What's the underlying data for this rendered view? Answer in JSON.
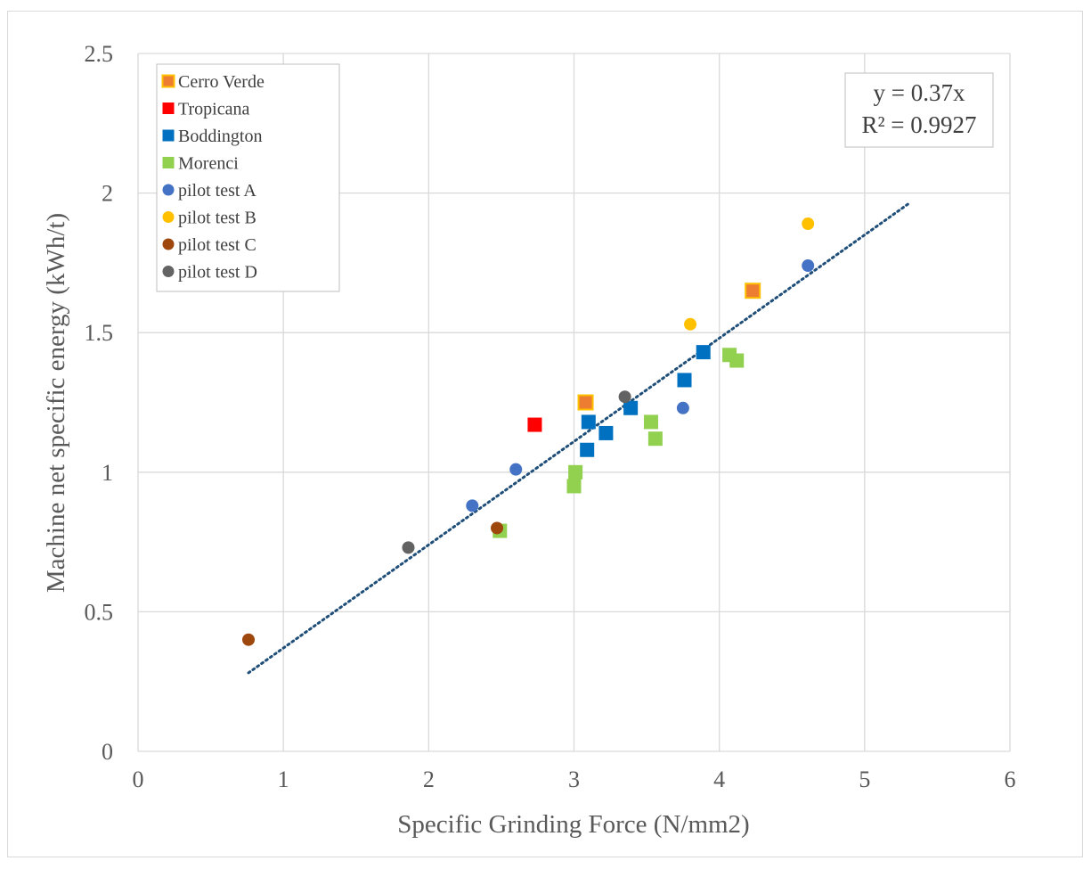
{
  "chart_data": {
    "type": "scatter",
    "xlabel": "Specific Grinding Force (N/mm2)",
    "ylabel": "Machine net specific energy (kWh/t)",
    "xlim": [
      0,
      6
    ],
    "ylim": [
      0,
      2.5
    ],
    "x_ticks": [
      "0",
      "1",
      "2",
      "3",
      "4",
      "5",
      "6"
    ],
    "y_ticks": [
      "0",
      "0.5",
      "1",
      "1.5",
      "2",
      "2.5"
    ],
    "grid": true,
    "legend_position": "top-left",
    "series": [
      {
        "name": "Cerro Verde",
        "marker": "square",
        "color": "#ED7D31",
        "border": "#FFC000",
        "points": [
          [
            3.08,
            1.25
          ],
          [
            4.23,
            1.65
          ]
        ]
      },
      {
        "name": "Tropicana",
        "marker": "square",
        "color": "#FF0000",
        "points": [
          [
            2.73,
            1.17
          ]
        ]
      },
      {
        "name": "Boddington",
        "marker": "square",
        "color": "#0070C0",
        "points": [
          [
            3.09,
            1.08
          ],
          [
            3.1,
            1.18
          ],
          [
            3.22,
            1.14
          ],
          [
            3.39,
            1.23
          ],
          [
            3.76,
            1.33
          ],
          [
            3.89,
            1.43
          ]
        ]
      },
      {
        "name": "Morenci",
        "marker": "square",
        "color": "#92D050",
        "points": [
          [
            2.49,
            0.79
          ],
          [
            3.0,
            0.95
          ],
          [
            3.01,
            1.0
          ],
          [
            3.53,
            1.18
          ],
          [
            3.56,
            1.12
          ],
          [
            4.07,
            1.42
          ],
          [
            4.12,
            1.4
          ]
        ]
      },
      {
        "name": "pilot test A",
        "marker": "circle",
        "color": "#4472C4",
        "points": [
          [
            2.3,
            0.88
          ],
          [
            2.6,
            1.01
          ],
          [
            3.75,
            1.23
          ],
          [
            4.61,
            1.74
          ]
        ]
      },
      {
        "name": "pilot test B",
        "marker": "circle",
        "color": "#FFC000",
        "points": [
          [
            3.8,
            1.53
          ],
          [
            4.61,
            1.89
          ]
        ]
      },
      {
        "name": "pilot test C",
        "marker": "circle",
        "color": "#9E480E",
        "points": [
          [
            0.76,
            0.4
          ],
          [
            2.47,
            0.8
          ]
        ]
      },
      {
        "name": "pilot test D",
        "marker": "circle",
        "color": "#636363",
        "points": [
          [
            1.86,
            0.73
          ],
          [
            3.35,
            1.27
          ]
        ]
      }
    ],
    "trendline": {
      "type": "linear",
      "slope": 0.37,
      "x_range": [
        0.76,
        5.3
      ],
      "color": "#1F4E79",
      "style": "dotted"
    },
    "annotations": {
      "equation": "y = 0.37x",
      "r_squared": "R² = 0.9927"
    }
  }
}
